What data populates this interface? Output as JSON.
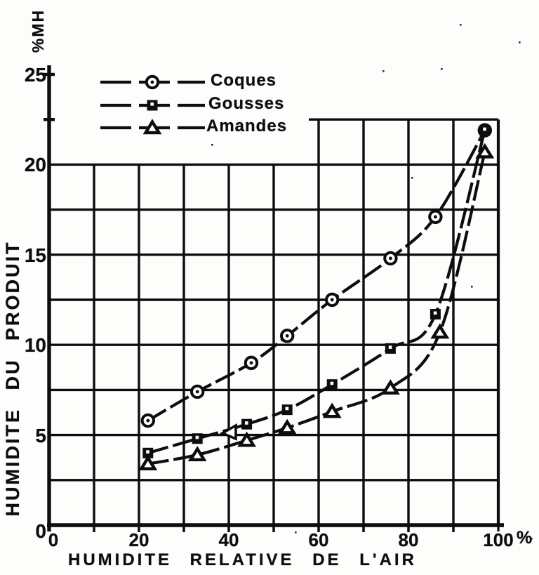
{
  "page": {
    "background": "#fdfdfc",
    "ink": "#0d0d0d",
    "description": "Scanned black-and-white line chart of product moisture vs relative air humidity"
  },
  "chart_data": {
    "type": "line",
    "title": "",
    "xlabel": "HUMIDITE RELATIVE DE L'AIR",
    "ylabel": "HUMIDITE  DU  PRODUIT",
    "ylabel_unit": "%MH",
    "x_axis_suffix": "%",
    "xlim": [
      0,
      100
    ],
    "ylim": [
      0,
      25
    ],
    "x_ticks": [
      0,
      20,
      40,
      60,
      80,
      100
    ],
    "x_tick_labels": [
      "0",
      "20",
      "40",
      "60",
      "80",
      "100"
    ],
    "y_ticks": [
      0,
      5,
      10,
      15,
      20,
      25
    ],
    "y_tick_labels": [
      "0",
      "5",
      "10",
      "15",
      "20",
      "25"
    ],
    "grid": {
      "x_minor_step": 10,
      "y_minor_step": 2.5,
      "visible": true
    },
    "legend_position": "top-left-inside",
    "legend": [
      {
        "name": "Coques",
        "marker": "circle"
      },
      {
        "name": "Gousses",
        "marker": "square"
      },
      {
        "name": "Amandes",
        "marker": "triangle"
      }
    ],
    "series": [
      {
        "name": "Coques",
        "marker": "circle",
        "points": [
          [
            22,
            5.8
          ],
          [
            33,
            7.4
          ],
          [
            45,
            9.0
          ],
          [
            53,
            10.5
          ],
          [
            63,
            12.5
          ],
          [
            76,
            14.8
          ],
          [
            86,
            17.1
          ],
          [
            97,
            21.9
          ]
        ]
      },
      {
        "name": "Gousses",
        "marker": "square",
        "points": [
          [
            22,
            4.0
          ],
          [
            33,
            4.8
          ],
          [
            44,
            5.6
          ],
          [
            53,
            6.4
          ],
          [
            63,
            7.8
          ],
          [
            76,
            9.8
          ],
          [
            86,
            11.7
          ],
          [
            97,
            21.9
          ]
        ]
      },
      {
        "name": "Amandes",
        "marker": "triangle",
        "points": [
          [
            22,
            3.4
          ],
          [
            33,
            3.9
          ],
          [
            44,
            4.7
          ],
          [
            53,
            5.4
          ],
          [
            63,
            6.3
          ],
          [
            76,
            7.6
          ],
          [
            87,
            10.7
          ],
          [
            97,
            20.7
          ]
        ]
      }
    ]
  }
}
